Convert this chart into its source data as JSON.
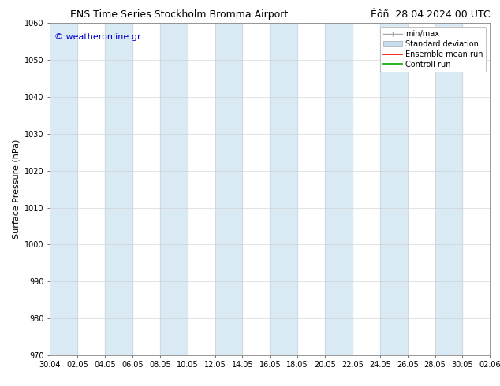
{
  "title_left": "ENS Time Series Stockholm Bromma Airport",
  "title_right": "Êôñ. 28.04.2024 00 UTC",
  "ylabel": "Surface Pressure (hPa)",
  "ylim": [
    970,
    1060
  ],
  "yticks": [
    970,
    980,
    990,
    1000,
    1010,
    1020,
    1030,
    1040,
    1050,
    1060
  ],
  "xtick_labels": [
    "30.04",
    "02.05",
    "04.05",
    "06.05",
    "08.05",
    "10.05",
    "12.05",
    "14.05",
    "16.05",
    "18.05",
    "20.05",
    "22.05",
    "24.05",
    "26.05",
    "28.05",
    "30.05",
    "02.06"
  ],
  "watermark": "© weatheronline.gr",
  "watermark_color": "#0000cc",
  "background_color": "#ffffff",
  "plot_bg_color": "#ffffff",
  "shaded_band_color": "#daeaf5",
  "legend_labels": [
    "min/max",
    "Standard deviation",
    "Ensemble mean run",
    "Controll run"
  ],
  "minmax_color": "#aaaaaa",
  "std_facecolor": "#c8dded",
  "std_edgecolor": "#aaaaaa",
  "ensemble_color": "#ff0000",
  "control_color": "#00aa00",
  "title_fontsize": 9,
  "axis_label_fontsize": 8,
  "tick_fontsize": 7,
  "legend_fontsize": 7,
  "watermark_fontsize": 8,
  "num_xticks": 17,
  "xlim": [
    0,
    16
  ]
}
